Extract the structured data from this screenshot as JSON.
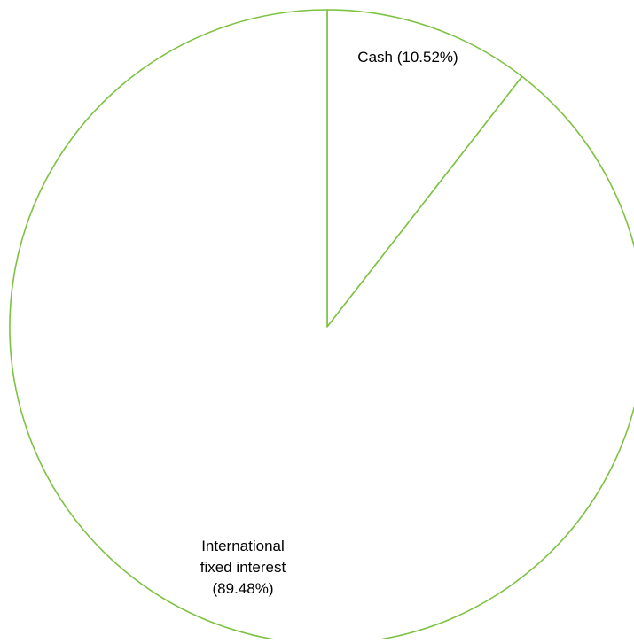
{
  "chart_data": {
    "type": "pie",
    "title": "",
    "start_angle_deg": 0,
    "direction": "clockwise",
    "slices": [
      {
        "label": "Cash (10.52%)",
        "label_lines": [
          "Cash (10.52%)"
        ],
        "value": 10.52
      },
      {
        "label": "International fixed interest (89.48%)",
        "label_lines": [
          "International",
          "fixed interest",
          "(89.48%)"
        ],
        "value": 89.48
      }
    ],
    "colors": {
      "slice_fill": "#ffffff",
      "slice_stroke": "#7dc242"
    },
    "legend": "none"
  }
}
